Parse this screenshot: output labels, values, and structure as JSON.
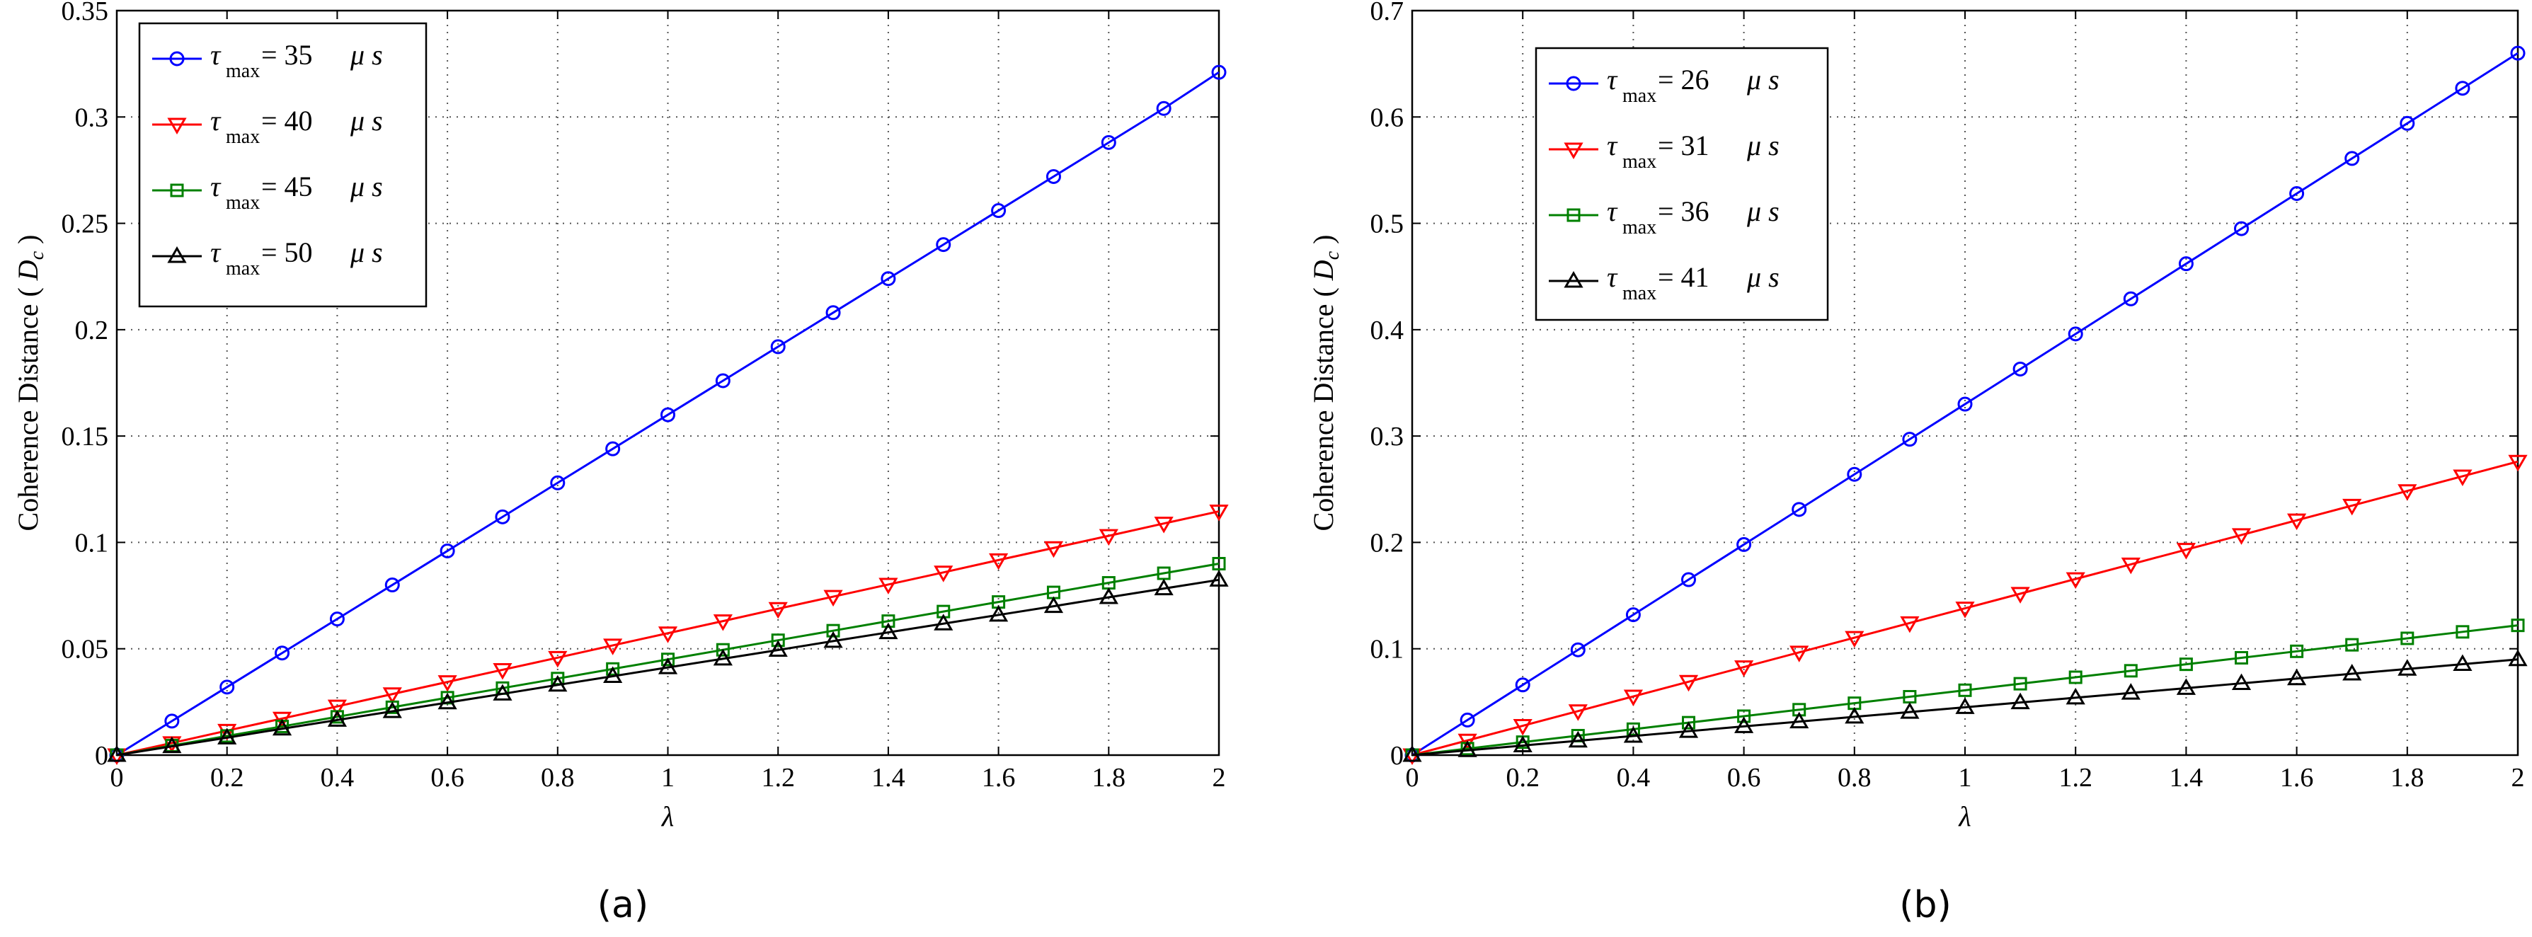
{
  "chart_data": [
    {
      "type": "line",
      "panel_label": "(a)",
      "xlabel": "λ",
      "ylabel": "Coherence Distance",
      "ylabel_symbol": "D",
      "ylabel_sub": "c",
      "xlim": [
        0,
        2
      ],
      "ylim": [
        0,
        0.35
      ],
      "xticks": [
        "0",
        "0.2",
        "0.4",
        "0.6",
        "0.8",
        "1",
        "1.2",
        "1.4",
        "1.6",
        "1.8",
        "2"
      ],
      "yticks": [
        "0",
        "0.05",
        "0.1",
        "0.15",
        "0.2",
        "0.25",
        "0.3",
        "0.35"
      ],
      "grid": true,
      "legend_position": "top-left",
      "x": [
        0,
        0.1,
        0.2,
        0.3,
        0.4,
        0.5,
        0.6,
        0.7,
        0.8,
        0.9,
        1.0,
        1.1,
        1.2,
        1.3,
        1.4,
        1.5,
        1.6,
        1.7,
        1.8,
        1.9,
        2.0
      ],
      "series": [
        {
          "tau": "τ",
          "sub": "max",
          "value_text": "= 35",
          "unit": "μ s",
          "color": "#0000ff",
          "marker": "circle",
          "values": [
            0,
            0.016,
            0.032,
            0.048,
            0.064,
            0.08,
            0.096,
            0.112,
            0.128,
            0.144,
            0.16,
            0.176,
            0.192,
            0.208,
            0.224,
            0.24,
            0.256,
            0.272,
            0.288,
            0.304,
            0.321
          ]
        },
        {
          "tau": "τ",
          "sub": "max",
          "value_text": "= 40",
          "unit": "μ s",
          "color": "#ff0000",
          "marker": "triangle-down",
          "values": [
            0,
            0.0057,
            0.0115,
            0.0172,
            0.0229,
            0.0287,
            0.0344,
            0.0401,
            0.0458,
            0.0516,
            0.0573,
            0.063,
            0.0688,
            0.0745,
            0.0802,
            0.0859,
            0.0917,
            0.0974,
            0.1031,
            0.1089,
            0.1146
          ]
        },
        {
          "tau": "τ",
          "sub": "max",
          "value_text": "= 45",
          "unit": "μ s",
          "color": "#008000",
          "marker": "square",
          "values": [
            0,
            0.0045,
            0.009,
            0.0135,
            0.018,
            0.0225,
            0.027,
            0.0315,
            0.036,
            0.0405,
            0.045,
            0.0495,
            0.054,
            0.0585,
            0.063,
            0.0675,
            0.072,
            0.0765,
            0.081,
            0.0855,
            0.09
          ]
        },
        {
          "tau": "τ",
          "sub": "max",
          "value_text": "= 50",
          "unit": "μ s",
          "color": "#000000",
          "marker": "triangle-up",
          "values": [
            0,
            0.0041,
            0.0082,
            0.0124,
            0.0165,
            0.0206,
            0.0247,
            0.0288,
            0.033,
            0.0371,
            0.0412,
            0.0453,
            0.0494,
            0.0536,
            0.0577,
            0.0618,
            0.0659,
            0.07,
            0.0742,
            0.0783,
            0.0824
          ]
        }
      ]
    },
    {
      "type": "line",
      "panel_label": "(b)",
      "xlabel": "λ",
      "ylabel": "Coherence Distance",
      "ylabel_symbol": "D",
      "ylabel_sub": "c",
      "xlim": [
        0,
        2
      ],
      "ylim": [
        0,
        0.7
      ],
      "xticks": [
        "0",
        "0.2",
        "0.4",
        "0.6",
        "0.8",
        "1",
        "1.2",
        "1.4",
        "1.6",
        "1.8",
        "2"
      ],
      "yticks": [
        "0",
        "0.1",
        "0.2",
        "0.3",
        "0.4",
        "0.5",
        "0.6",
        "0.7"
      ],
      "grid": true,
      "legend_position": "top-left",
      "x": [
        0,
        0.1,
        0.2,
        0.3,
        0.4,
        0.5,
        0.6,
        0.7,
        0.8,
        0.9,
        1.0,
        1.1,
        1.2,
        1.3,
        1.4,
        1.5,
        1.6,
        1.7,
        1.8,
        1.9,
        2.0
      ],
      "series": [
        {
          "tau": "τ",
          "sub": "max",
          "value_text": "= 26",
          "unit": "μ s",
          "color": "#0000ff",
          "marker": "circle",
          "values": [
            0,
            0.033,
            0.066,
            0.099,
            0.132,
            0.165,
            0.198,
            0.231,
            0.264,
            0.297,
            0.33,
            0.363,
            0.396,
            0.429,
            0.462,
            0.495,
            0.528,
            0.561,
            0.594,
            0.627,
            0.66
          ]
        },
        {
          "tau": "τ",
          "sub": "max",
          "value_text": "= 31",
          "unit": "μ s",
          "color": "#ff0000",
          "marker": "triangle-down",
          "values": [
            0,
            0.0138,
            0.0276,
            0.0414,
            0.0552,
            0.069,
            0.0828,
            0.0966,
            0.1104,
            0.1242,
            0.138,
            0.1518,
            0.1656,
            0.1794,
            0.1932,
            0.207,
            0.2208,
            0.2346,
            0.2484,
            0.2622,
            0.276
          ]
        },
        {
          "tau": "τ",
          "sub": "max",
          "value_text": "= 36",
          "unit": "μ s",
          "color": "#008000",
          "marker": "square",
          "values": [
            0,
            0.0061,
            0.0122,
            0.0183,
            0.0244,
            0.0305,
            0.0366,
            0.0427,
            0.0488,
            0.0549,
            0.061,
            0.0671,
            0.0732,
            0.0793,
            0.0854,
            0.0915,
            0.0976,
            0.1037,
            0.1098,
            0.1159,
            0.122
          ]
        },
        {
          "tau": "τ",
          "sub": "max",
          "value_text": "= 41",
          "unit": "μ s",
          "color": "#000000",
          "marker": "triangle-up",
          "values": [
            0,
            0.0045,
            0.009,
            0.0135,
            0.018,
            0.0225,
            0.027,
            0.0315,
            0.036,
            0.0405,
            0.045,
            0.0495,
            0.054,
            0.0585,
            0.063,
            0.0675,
            0.072,
            0.0765,
            0.081,
            0.0855,
            0.09
          ]
        }
      ]
    }
  ]
}
